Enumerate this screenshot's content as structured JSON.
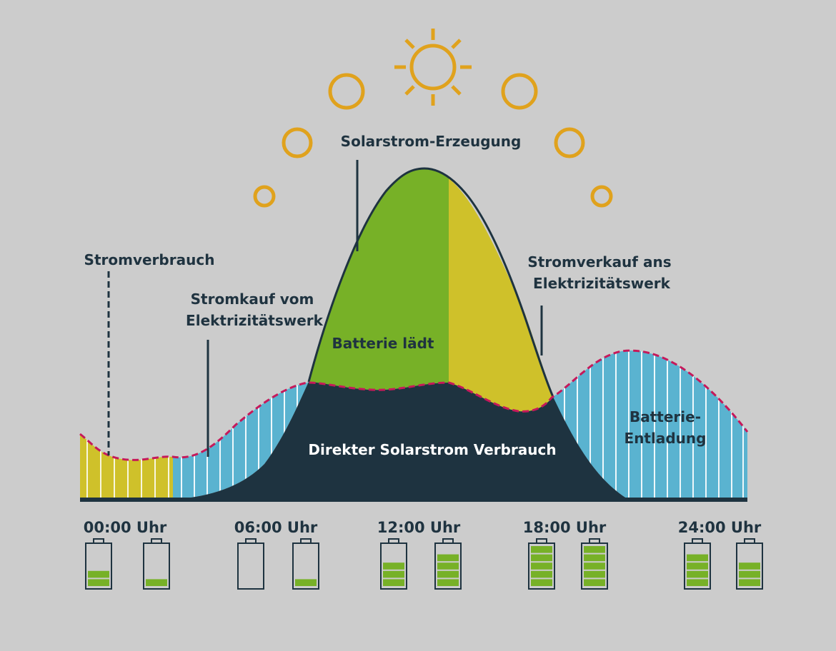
{
  "labels": {
    "production": "Solarstrom-Erzeugung",
    "consumption": "Stromverbrauch",
    "buy_line1": "Stromkauf vom",
    "buy_line2": "Elektrizitätswerk",
    "sell_line1": "Stromverkauf ans",
    "sell_line2": "Elektrizitätswerk",
    "charging": "Batterie lädt",
    "direct": "Direkter Solarstrom Verbrauch",
    "discharge_line1": "Batterie-",
    "discharge_line2": "Entladung"
  },
  "times": [
    "00:00 Uhr",
    "06:00 Uhr",
    "12:00 Uhr",
    "18:00 Uhr",
    "24:00 Uhr"
  ],
  "battery_levels": [
    0.4,
    0.2,
    0,
    0.2,
    0.6,
    0.8,
    1,
    1,
    0.8,
    0.6
  ],
  "colors": {
    "background": "#cccccc",
    "sun": "#e0a21d",
    "solar_green": "#77b127",
    "yellow": "#cfc12a",
    "blue": "#5ab3d0",
    "dark": "#1e3340",
    "dashed_line": "#c6195a",
    "text": "#1f3340"
  }
}
